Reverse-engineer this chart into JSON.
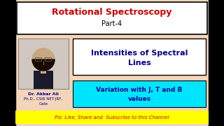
{
  "bg_color": "#f5d5b8",
  "black_bar_width": 22,
  "border_color": "#000000",
  "title_text": "Rotational Spectroscopy",
  "title_color": "#cc0000",
  "subtitle_text": "Part-4",
  "subtitle_color": "#000000",
  "top_box_bg": "#ffffff",
  "main_title_text": "Intensities of Spectral\nLines",
  "main_title_color": "#00008b",
  "main_box_bg": "#ffffff",
  "variation_text": "Variation with J, T and B\nvalues",
  "variation_bg": "#00e5ff",
  "variation_color": "#00008b",
  "author_name": "Dr. Akbar Ali",
  "author_line2": "Ph.D., CSIR NET-JRF,",
  "author_line3": "Gate",
  "author_color": "#00008b",
  "photo_bg": "#c8c8c8",
  "photo_border": "#888888",
  "bottom_text": "Plz. Like, Share and  Subscribe to this Channel",
  "bottom_bg": "#ffff00",
  "bottom_color": "#cc0000",
  "side_bars_color": "#000000"
}
